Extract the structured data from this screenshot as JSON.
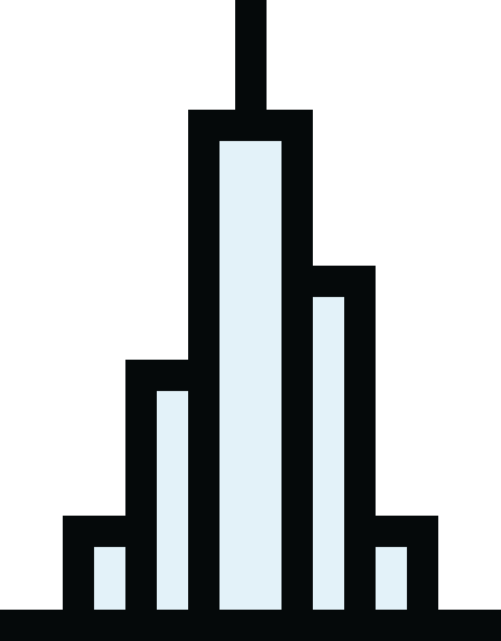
{
  "icon": {
    "name": "skyscraper-histogram-icon",
    "colors": {
      "outline": "#05090a",
      "fill": "#e3f2f9",
      "background": "#ffffff"
    },
    "bars": [
      {
        "name": "bar-far-left",
        "relative_height": 1
      },
      {
        "name": "bar-left",
        "relative_height": 3
      },
      {
        "name": "bar-center",
        "relative_height": 6
      },
      {
        "name": "bar-right",
        "relative_height": 4
      },
      {
        "name": "bar-far-right",
        "relative_height": 1
      }
    ]
  }
}
